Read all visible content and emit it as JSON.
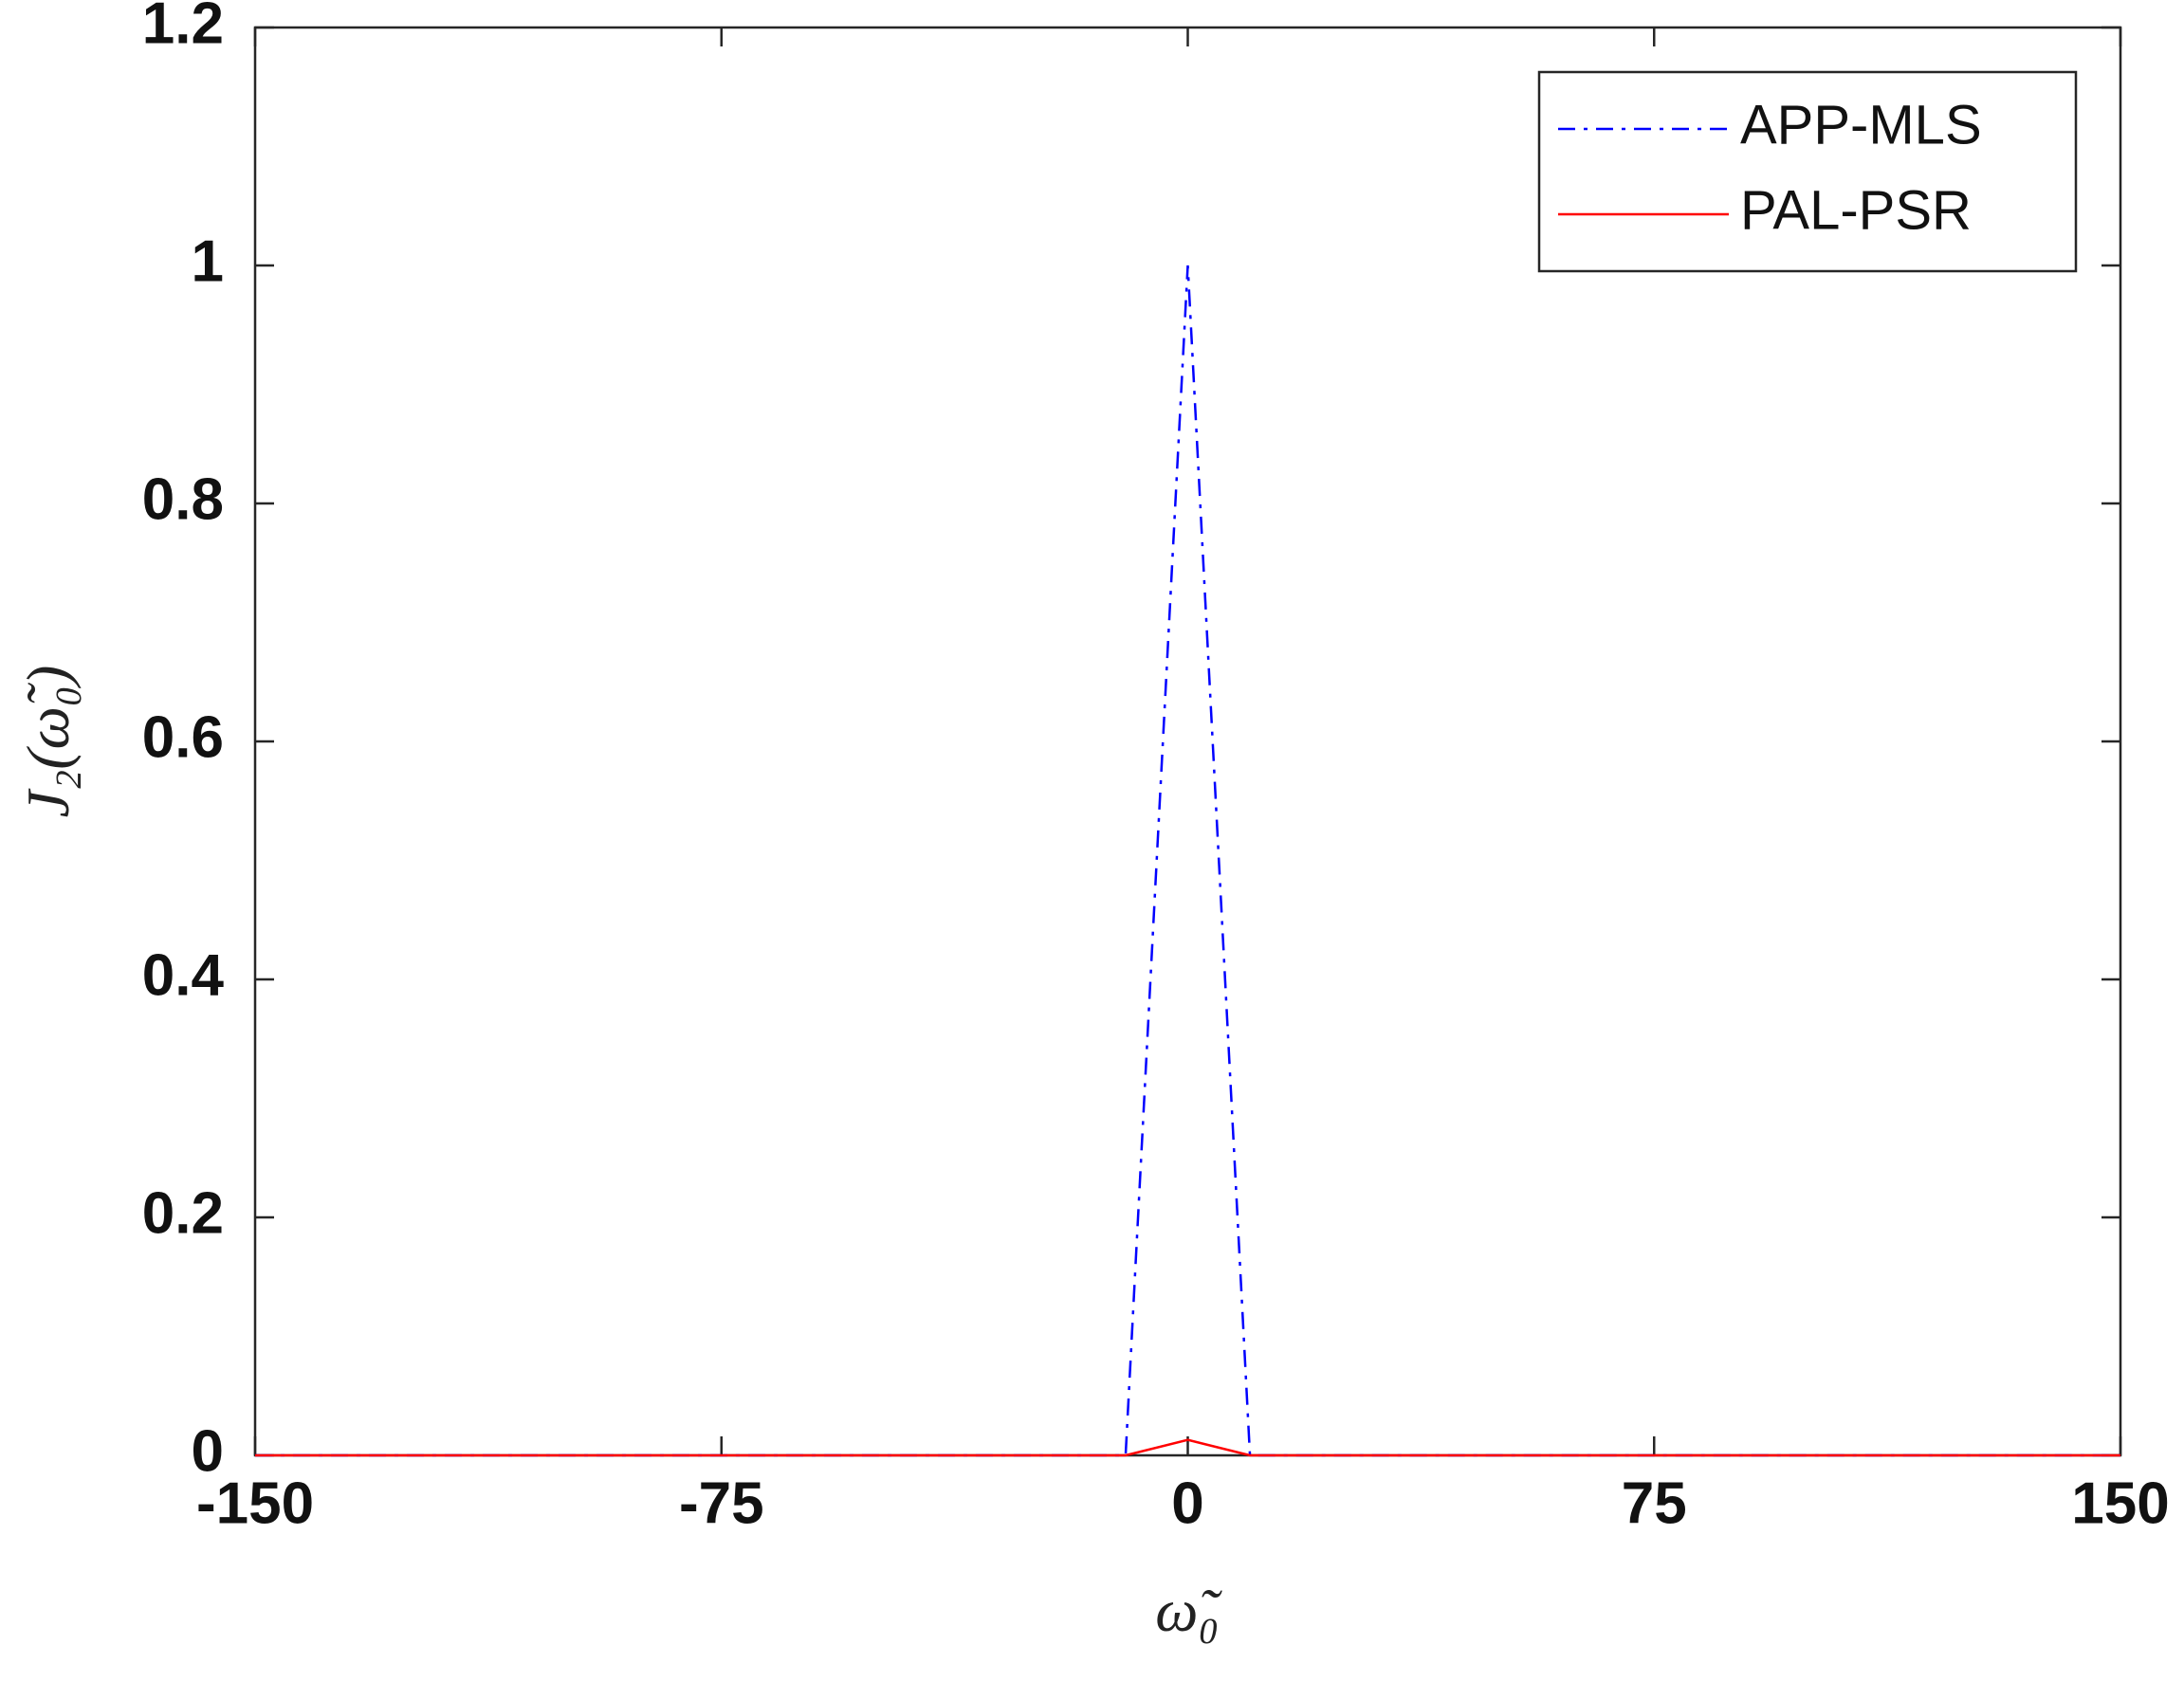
{
  "chart_data": {
    "type": "line",
    "x_label": "ω̃₀",
    "y_label": "J₂(ω̃₀)",
    "x": [
      -150,
      -10,
      0,
      10,
      150
    ],
    "series": [
      {
        "name": "APP-MLS",
        "color": "#0000ff",
        "dash": "dash-dot",
        "values": [
          0,
          0,
          1,
          0,
          0
        ]
      },
      {
        "name": "PAL-PSR",
        "color": "#ff0000",
        "dash": "solid",
        "values": [
          0,
          0,
          0.013,
          0,
          0
        ]
      }
    ],
    "xlim": [
      -150,
      150
    ],
    "xticks": [
      -150,
      -75,
      0,
      75,
      150
    ],
    "ylim": [
      0,
      1.2
    ],
    "yticks": [
      0,
      0.2,
      0.4,
      0.6,
      0.8,
      1,
      1.2
    ],
    "grid": false,
    "legend": "top-right"
  }
}
